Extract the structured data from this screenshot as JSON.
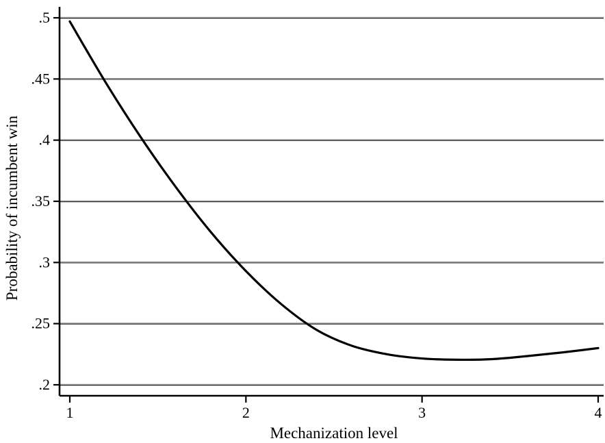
{
  "chart_data": {
    "type": "line",
    "title": "",
    "xlabel": "Mechanization level",
    "ylabel": "Probability of incumbent win",
    "xlim": [
      1,
      4
    ],
    "ylim": [
      0.2,
      0.5
    ],
    "grid": true,
    "legend": "none",
    "xticks": [
      {
        "value": 1,
        "label": "1"
      },
      {
        "value": 2,
        "label": "2"
      },
      {
        "value": 3,
        "label": "3"
      },
      {
        "value": 4,
        "label": "4"
      }
    ],
    "yticks": [
      {
        "value": 0.2,
        "label": ".2"
      },
      {
        "value": 0.25,
        "label": ".25"
      },
      {
        "value": 0.3,
        "label": ".3"
      },
      {
        "value": 0.35,
        "label": ".35"
      },
      {
        "value": 0.4,
        "label": ".4"
      },
      {
        "value": 0.45,
        "label": ".45"
      },
      {
        "value": 0.5,
        "label": ".5"
      }
    ],
    "series": [
      {
        "color": "#000000",
        "x": [
          1.0,
          1.2,
          1.4,
          1.6,
          1.8,
          2.0,
          2.2,
          2.4,
          2.6,
          2.8,
          3.0,
          3.2,
          3.4,
          3.6,
          3.8,
          4.0
        ],
        "y": [
          0.497,
          0.448,
          0.403,
          0.362,
          0.325,
          0.293,
          0.266,
          0.245,
          0.232,
          0.225,
          0.2215,
          0.2205,
          0.221,
          0.2235,
          0.2265,
          0.23
        ]
      }
    ]
  }
}
